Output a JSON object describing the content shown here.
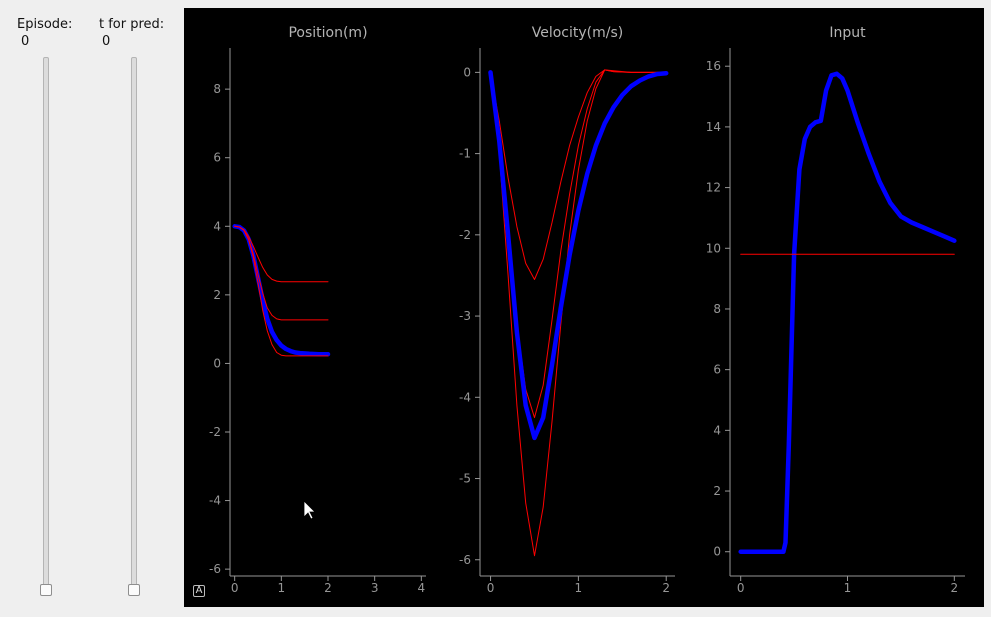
{
  "controls": {
    "episode": {
      "label": "Episode:",
      "value": "0"
    },
    "pred": {
      "label": "t for pred:",
      "value": "0"
    },
    "auto_button": "A"
  },
  "colors": {
    "prediction": "#ff0000",
    "actual": "#0000ff",
    "axis": "#969696",
    "background": "#000000"
  },
  "chart_data": [
    {
      "type": "line",
      "title": "Position(m)",
      "xlabel": "",
      "ylabel": "",
      "xlim": [
        -0.1,
        4.1
      ],
      "ylim": [
        -6.2,
        9.2
      ],
      "xticks": [
        0,
        1,
        2,
        3,
        4
      ],
      "yticks": [
        -6,
        -4,
        -2,
        0,
        2,
        4,
        6,
        8
      ],
      "series": [
        {
          "color": "#0000ff",
          "width": 4.5,
          "x": [
            0,
            0.1,
            0.2,
            0.3,
            0.4,
            0.5,
            0.6,
            0.7,
            0.8,
            0.9,
            1.0,
            1.1,
            1.2,
            1.3,
            1.4,
            1.6,
            1.8,
            2.0
          ],
          "y": [
            4.0,
            3.98,
            3.88,
            3.62,
            3.15,
            2.5,
            1.85,
            1.3,
            0.92,
            0.68,
            0.52,
            0.42,
            0.36,
            0.32,
            0.3,
            0.28,
            0.27,
            0.27
          ]
        },
        {
          "color": "#ff0000",
          "width": 1,
          "x": [
            0,
            0.1,
            0.2,
            0.3,
            0.4,
            0.5,
            0.6,
            0.7,
            0.8,
            0.9,
            1.0,
            1.1,
            1.2,
            1.3,
            1.5,
            2.0
          ],
          "y": [
            4.0,
            3.98,
            3.88,
            3.6,
            3.1,
            2.35,
            1.55,
            0.95,
            0.55,
            0.32,
            0.24,
            0.22,
            0.22,
            0.22,
            0.22,
            0.22
          ]
        },
        {
          "color": "#ff0000",
          "width": 1,
          "x": [
            0,
            0.1,
            0.2,
            0.3,
            0.4,
            0.5,
            0.6,
            0.7,
            0.8,
            0.9,
            1.0,
            1.1,
            1.3,
            1.5,
            2.0
          ],
          "y": [
            4.0,
            3.98,
            3.88,
            3.62,
            3.18,
            2.6,
            2.05,
            1.62,
            1.4,
            1.3,
            1.27,
            1.27,
            1.27,
            1.27,
            1.27
          ]
        },
        {
          "color": "#ff0000",
          "width": 1,
          "x": [
            0,
            0.1,
            0.2,
            0.3,
            0.4,
            0.5,
            0.6,
            0.7,
            0.8,
            0.9,
            1.0,
            1.1,
            1.3,
            1.5,
            2.0
          ],
          "y": [
            4.0,
            3.98,
            3.9,
            3.7,
            3.42,
            3.1,
            2.8,
            2.58,
            2.45,
            2.4,
            2.38,
            2.38,
            2.38,
            2.38,
            2.38
          ]
        }
      ]
    },
    {
      "type": "line",
      "title": "Velocity(m/s)",
      "xlabel": "",
      "ylabel": "",
      "xlim": [
        -0.12,
        2.1
      ],
      "ylim": [
        -6.2,
        0.3
      ],
      "xticks": [
        0,
        1,
        2
      ],
      "yticks": [
        -6,
        -5,
        -4,
        -3,
        -2,
        -1,
        0
      ],
      "series": [
        {
          "color": "#ff0000",
          "width": 1,
          "x": [
            0,
            0.1,
            0.2,
            0.3,
            0.4,
            0.5,
            0.6,
            0.7,
            0.8,
            0.9,
            1.0,
            1.1,
            1.2,
            1.3,
            1.4,
            1.6,
            2.0
          ],
          "y": [
            0,
            -1.0,
            -2.5,
            -4.1,
            -5.3,
            -5.95,
            -5.35,
            -4.3,
            -3.1,
            -2.0,
            -1.2,
            -0.6,
            -0.2,
            0.03,
            0.02,
            0,
            0
          ]
        },
        {
          "color": "#ff0000",
          "width": 1,
          "x": [
            0,
            0.1,
            0.2,
            0.3,
            0.4,
            0.5,
            0.6,
            0.7,
            0.8,
            0.9,
            1.0,
            1.1,
            1.2,
            1.3,
            1.4,
            1.6,
            2.0
          ],
          "y": [
            0,
            -0.9,
            -2.0,
            -3.1,
            -3.9,
            -4.25,
            -3.85,
            -3.05,
            -2.2,
            -1.5,
            -0.9,
            -0.45,
            -0.12,
            0.03,
            0.01,
            0,
            0
          ]
        },
        {
          "color": "#ff0000",
          "width": 1,
          "x": [
            0,
            0.1,
            0.2,
            0.3,
            0.4,
            0.5,
            0.6,
            0.7,
            0.8,
            0.9,
            1.0,
            1.1,
            1.2,
            1.3,
            1.4,
            1.6,
            2.0
          ],
          "y": [
            0,
            -0.6,
            -1.3,
            -1.9,
            -2.35,
            -2.55,
            -2.3,
            -1.85,
            -1.35,
            -0.9,
            -0.55,
            -0.25,
            -0.05,
            0.03,
            0.01,
            0,
            0
          ]
        },
        {
          "color": "#0000ff",
          "width": 4.5,
          "x": [
            0,
            0.1,
            0.2,
            0.3,
            0.4,
            0.5,
            0.6,
            0.7,
            0.8,
            0.9,
            1.0,
            1.1,
            1.2,
            1.3,
            1.4,
            1.5,
            1.6,
            1.7,
            1.8,
            1.9,
            2.0
          ],
          "y": [
            0,
            -0.85,
            -2.0,
            -3.2,
            -4.1,
            -4.5,
            -4.25,
            -3.6,
            -2.9,
            -2.25,
            -1.7,
            -1.25,
            -0.9,
            -0.63,
            -0.43,
            -0.28,
            -0.17,
            -0.1,
            -0.05,
            -0.02,
            -0.01
          ]
        }
      ]
    },
    {
      "type": "line",
      "title": "Input",
      "xlabel": "",
      "ylabel": "",
      "xlim": [
        -0.1,
        2.1
      ],
      "ylim": [
        -0.8,
        16.6
      ],
      "xticks": [
        0,
        1,
        2
      ],
      "yticks": [
        0,
        2,
        4,
        6,
        8,
        10,
        12,
        14,
        16
      ],
      "series": [
        {
          "color": "#0000ff",
          "width": 4.5,
          "x": [
            0,
            0.1,
            0.2,
            0.3,
            0.4,
            0.42,
            0.45,
            0.5,
            0.55,
            0.6,
            0.65,
            0.7,
            0.75,
            0.8,
            0.85,
            0.9,
            0.95,
            1.0,
            1.1,
            1.2,
            1.3,
            1.4,
            1.5,
            1.6,
            1.7,
            1.8,
            1.9,
            2.0
          ],
          "y": [
            0,
            0,
            0,
            0,
            0,
            0.3,
            3.5,
            9.8,
            12.6,
            13.6,
            14.0,
            14.15,
            14.2,
            15.2,
            15.7,
            15.75,
            15.6,
            15.2,
            14.1,
            13.1,
            12.2,
            11.5,
            11.05,
            10.85,
            10.7,
            10.55,
            10.4,
            10.25
          ]
        },
        {
          "color": "#ff0000",
          "width": 1,
          "x": [
            0,
            2
          ],
          "y": [
            9.8,
            9.8
          ]
        }
      ]
    }
  ]
}
